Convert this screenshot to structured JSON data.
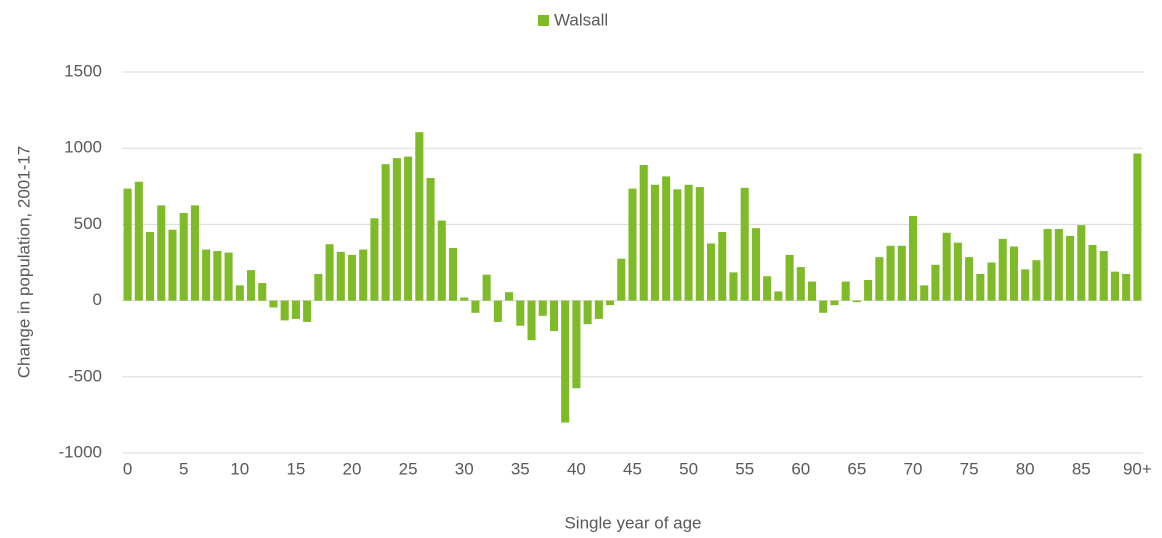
{
  "chart_data": {
    "type": "bar",
    "xlabel": "Single year of age",
    "ylabel": "Change in population, 2001-17",
    "categories": [
      "0",
      null,
      null,
      null,
      null,
      "5",
      null,
      null,
      null,
      null,
      "10",
      null,
      null,
      null,
      null,
      "15",
      null,
      null,
      null,
      null,
      "20",
      null,
      null,
      null,
      null,
      "25",
      null,
      null,
      null,
      null,
      "30",
      null,
      null,
      null,
      null,
      "35",
      null,
      null,
      null,
      null,
      "40",
      null,
      null,
      null,
      null,
      "45",
      null,
      null,
      null,
      null,
      "50",
      null,
      null,
      null,
      null,
      "55",
      null,
      null,
      null,
      null,
      "60",
      null,
      null,
      null,
      null,
      "65",
      null,
      null,
      null,
      null,
      "70",
      null,
      null,
      null,
      null,
      "75",
      null,
      null,
      null,
      null,
      "80",
      null,
      null,
      null,
      null,
      "85",
      null,
      null,
      null,
      null,
      "90+"
    ],
    "series": [
      {
        "name": "Walsall",
        "color": "#7fba28",
        "values": [
          735,
          780,
          450,
          625,
          465,
          575,
          625,
          335,
          325,
          315,
          100,
          200,
          115,
          -45,
          -130,
          -120,
          -140,
          175,
          370,
          320,
          300,
          335,
          540,
          895,
          935,
          945,
          1105,
          805,
          525,
          345,
          20,
          -80,
          170,
          -140,
          55,
          -165,
          -260,
          -100,
          -200,
          -800,
          -575,
          -155,
          -120,
          -30,
          275,
          735,
          890,
          760,
          815,
          730,
          760,
          745,
          375,
          450,
          185,
          740,
          475,
          160,
          60,
          300,
          220,
          125,
          -80,
          -30,
          125,
          -10,
          135,
          285,
          360,
          360,
          555,
          100,
          235,
          445,
          380,
          285,
          175,
          250,
          405,
          355,
          205,
          265,
          470,
          470,
          425,
          495,
          365,
          325,
          190,
          175,
          965
        ]
      }
    ],
    "ylim": [
      -1000,
      1500
    ],
    "yticks": [
      -1000,
      -500,
      0,
      500,
      1000,
      1500
    ],
    "grid": true,
    "legend": "top"
  }
}
